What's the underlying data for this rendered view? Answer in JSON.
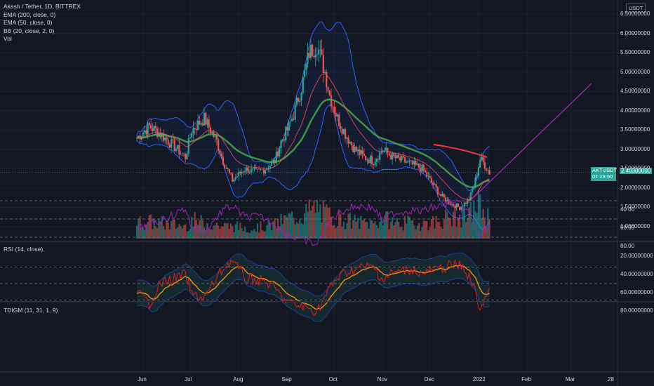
{
  "legend": {
    "symbol": "Akash / Tether, 1D, BITTREX",
    "ema200": "EMA (200, close, 0)",
    "ema50": "EMA (50, close, 0)",
    "bb": "BB (20, close, 2, 0)",
    "vol": "Vol"
  },
  "price_axis": {
    "currency": "USDT",
    "ticks": [
      "6.50000000",
      "6.00000000",
      "5.50000000",
      "5.00000000",
      "4.50000000",
      "4.00000000",
      "3.50000000",
      "3.00000000",
      "2.50000000",
      "2.00000000",
      "1.50000000",
      "1.00000000"
    ],
    "ticker": "AKTUSDT",
    "last_price": "2.40300000",
    "countdown": "01:28:50"
  },
  "rsi_panel": {
    "label": "RSI (14, close)",
    "ticks": [
      "80.00",
      "60.00",
      "40.00"
    ]
  },
  "tdi_panel": {
    "label": "TDIGM (11, 31, 1, 9)",
    "ticks": [
      "80.00000000",
      "60.00000000",
      "40.00000000",
      "20.00000000"
    ]
  },
  "time_axis": {
    "labels": [
      "Jun",
      "Jul",
      "Aug",
      "Sep",
      "Oct",
      "Nov",
      "Dec",
      "2022",
      "Feb",
      "Mar",
      "28"
    ]
  },
  "colors": {
    "background": "#131722",
    "up": "#26a69a",
    "down": "#ef5350",
    "bb": "#2962ff",
    "ema50": "#f7525f",
    "ema200_band": "#4caf50",
    "rsi": "#9c27b0",
    "trendline": "#9c27b0",
    "resistance": "#f23645"
  },
  "chart_data": {
    "type": "line",
    "title": "Akash / Tether, 1D, BITTREX",
    "ylim": [
      0.8,
      6.6
    ],
    "x": [
      "2021-05-28",
      "2021-06-05",
      "2021-06-12",
      "2021-06-20",
      "2021-06-28",
      "2021-07-02",
      "2021-07-10",
      "2021-07-18",
      "2021-07-22",
      "2021-07-28",
      "2021-08-05",
      "2021-08-12",
      "2021-08-18",
      "2021-08-24",
      "2021-08-28",
      "2021-09-01",
      "2021-09-05",
      "2021-09-10",
      "2021-09-15",
      "2021-09-20",
      "2021-09-25",
      "2021-09-28",
      "2021-10-03",
      "2021-10-08",
      "2021-10-14",
      "2021-10-20",
      "2021-10-26",
      "2021-11-01",
      "2021-11-07",
      "2021-11-14",
      "2021-11-20",
      "2021-11-26",
      "2021-12-01",
      "2021-12-08",
      "2021-12-14",
      "2021-12-20",
      "2021-12-26",
      "2021-12-30",
      "2022-01-02",
      "2022-01-05",
      "2022-01-08"
    ],
    "series": [
      {
        "name": "Close",
        "values": [
          3.3,
          3.6,
          3.4,
          3.1,
          2.8,
          3.5,
          3.8,
          3.2,
          2.7,
          2.2,
          2.5,
          2.4,
          2.5,
          2.7,
          3.2,
          3.5,
          3.9,
          4.6,
          5.5,
          5.7,
          5.0,
          4.4,
          3.8,
          3.4,
          3.0,
          2.8,
          2.7,
          3.0,
          2.8,
          2.7,
          2.6,
          2.5,
          2.2,
          1.8,
          1.6,
          1.5,
          1.7,
          2.2,
          2.75,
          2.6,
          2.4
        ]
      },
      {
        "name": "Volume",
        "values": [
          1.0,
          1.1,
          1.0,
          0.9,
          0.8,
          1.2,
          1.0,
          0.9,
          0.8,
          0.8,
          0.7,
          0.7,
          0.8,
          0.9,
          1.1,
          1.3,
          1.4,
          1.5,
          1.8,
          2.0,
          1.6,
          1.5,
          1.3,
          1.2,
          1.1,
          1.0,
          1.0,
          1.3,
          1.1,
          1.0,
          1.0,
          1.0,
          1.0,
          1.2,
          1.4,
          1.3,
          1.5,
          2.1,
          2.3,
          1.6,
          1.3
        ]
      },
      {
        "name": "RSI",
        "values": [
          62,
          56,
          52,
          46,
          38,
          60,
          64,
          48,
          40,
          36,
          48,
          47,
          50,
          55,
          63,
          67,
          70,
          72,
          76,
          78,
          62,
          54,
          44,
          40,
          36,
          36,
          38,
          52,
          44,
          42,
          40,
          42,
          38,
          36,
          32,
          34,
          44,
          60,
          72,
          62,
          57
        ]
      },
      {
        "name": "TDIGM",
        "values": [
          60,
          72,
          50,
          45,
          40,
          62,
          66,
          44,
          34,
          24,
          44,
          46,
          48,
          55,
          64,
          70,
          73,
          75,
          78,
          80,
          65,
          55,
          44,
          38,
          34,
          32,
          32,
          46,
          38,
          36,
          34,
          40,
          36,
          34,
          30,
          30,
          42,
          60,
          78,
          66,
          60
        ]
      }
    ]
  }
}
